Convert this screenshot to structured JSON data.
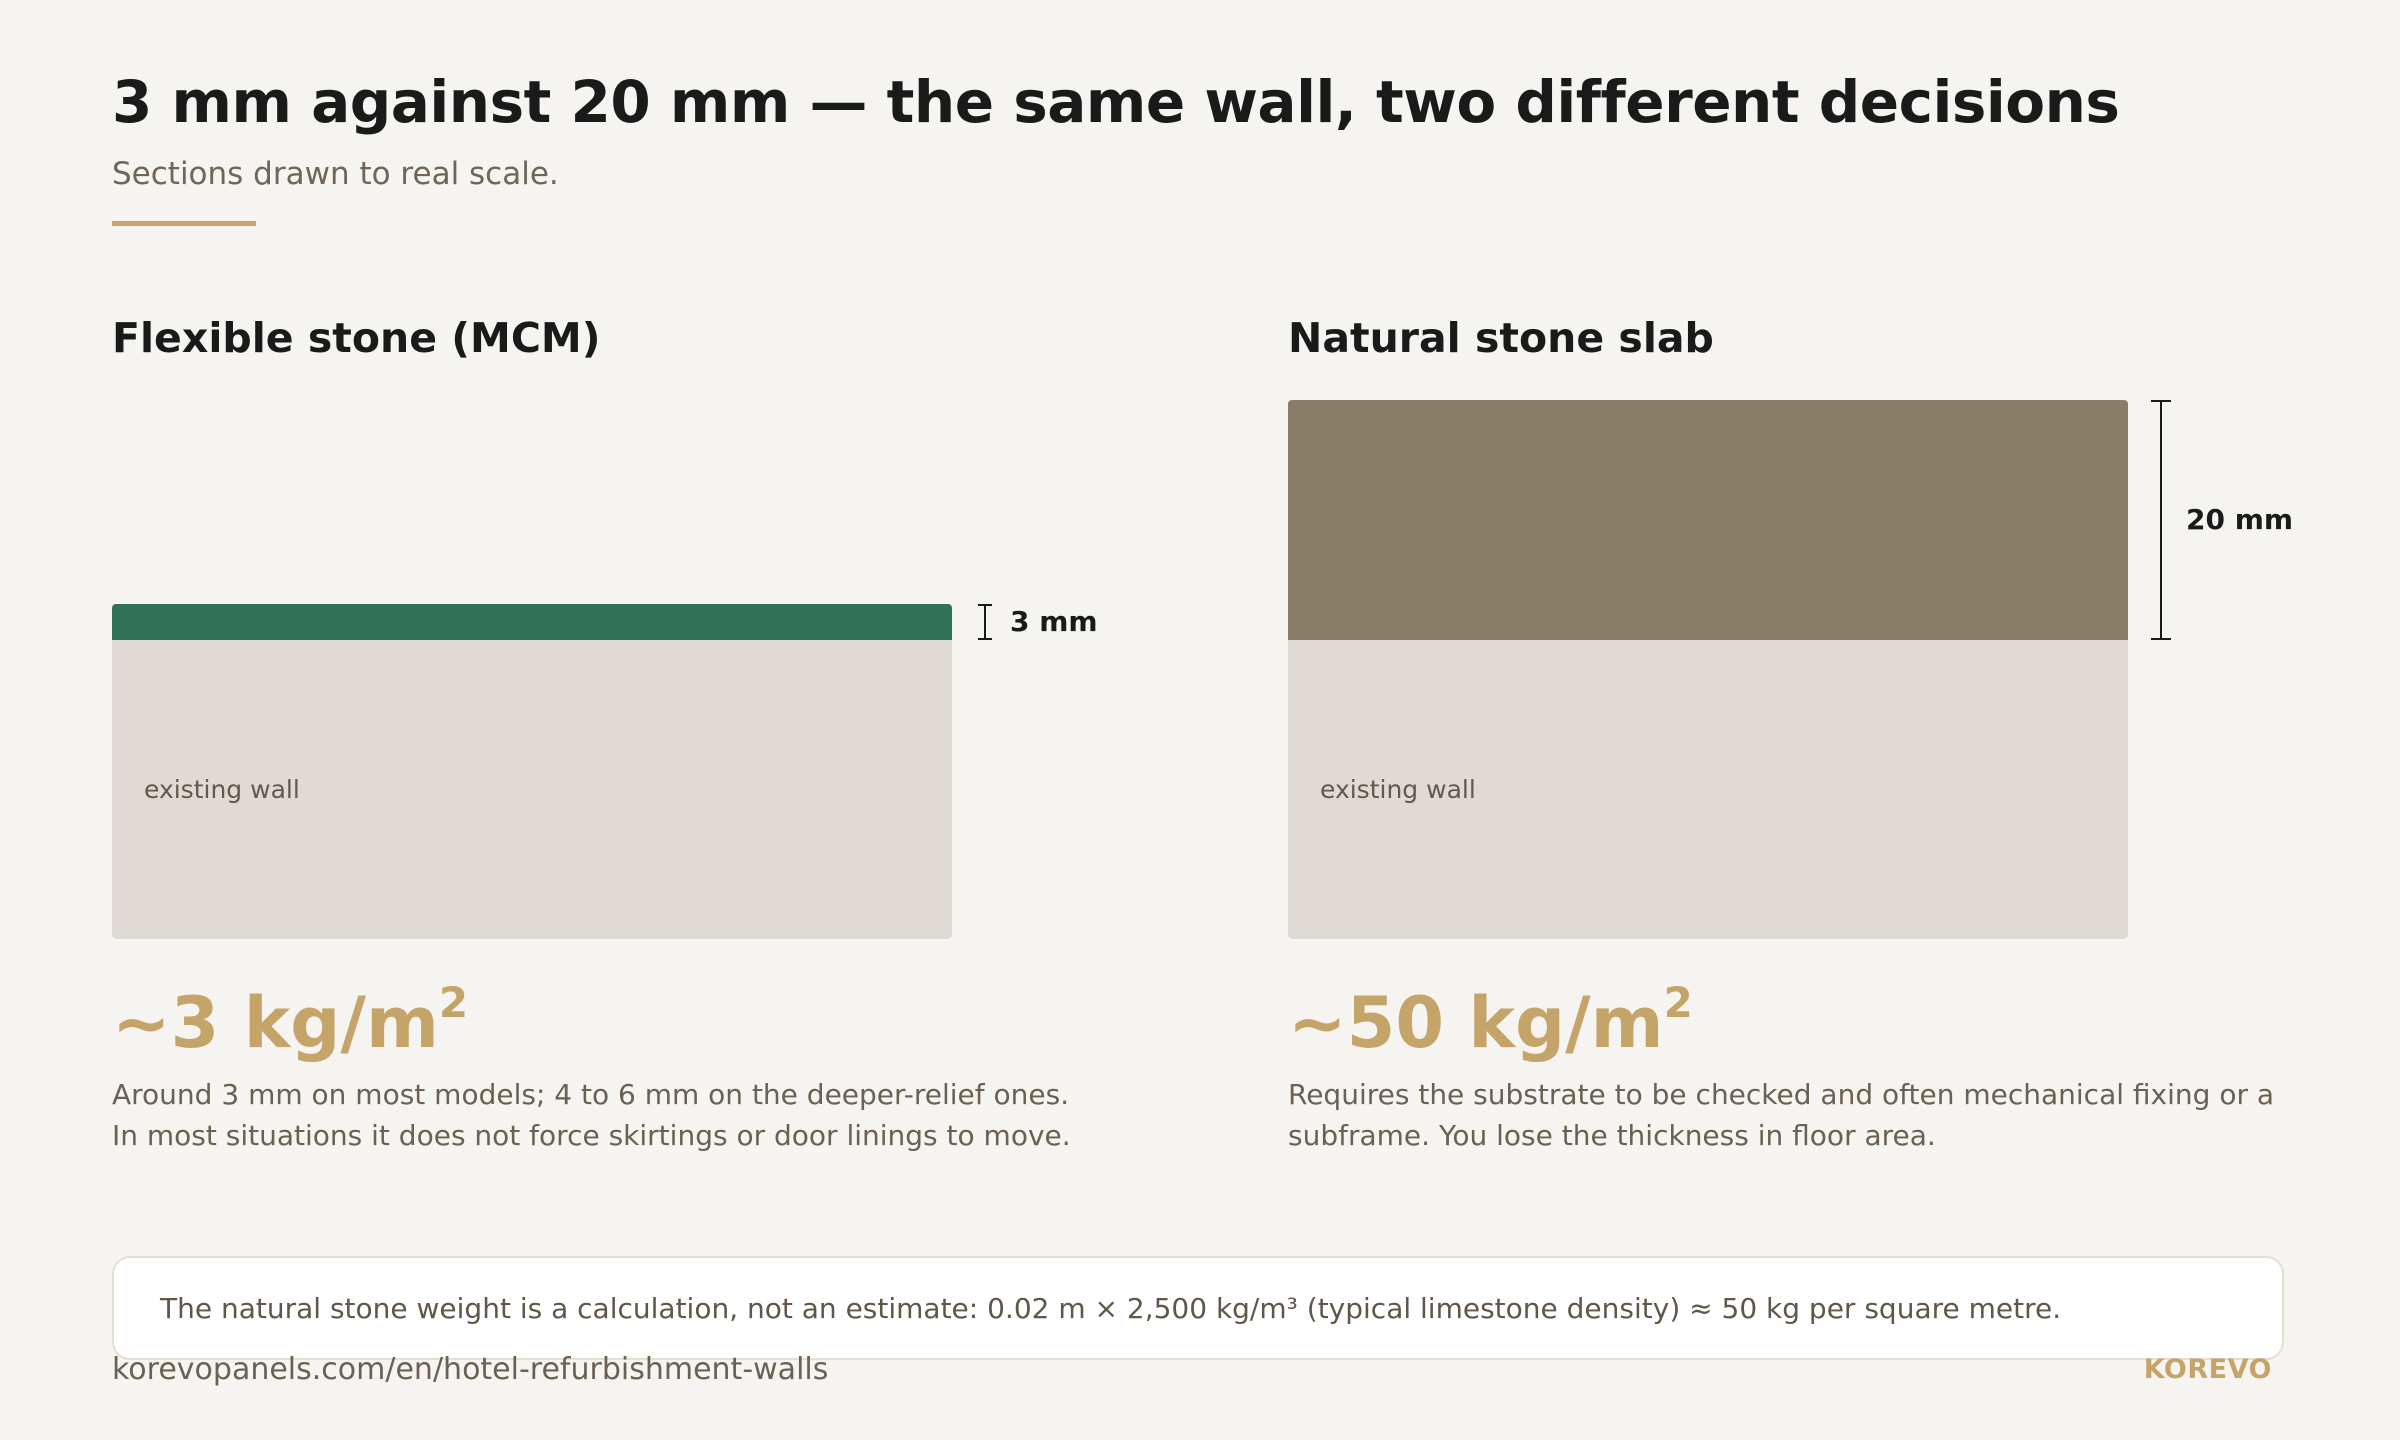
{
  "header": {
    "title": "3 mm against 20 mm — the same wall, two different decisions",
    "subtitle": "Sections drawn to real scale."
  },
  "left": {
    "heading": "Flexible stone (MCM)",
    "layer_thickness_mm": 3,
    "layer_color": "#317258",
    "dimension_label": "3 mm",
    "wall_label": "existing wall",
    "weight_value": "~3 kg/m",
    "weight_sup": "2",
    "description_line1": "Around 3 mm on most models; 4 to 6 mm on the deeper-relief ones.",
    "description_line2": "In most situations it does not force skirtings or door linings to move."
  },
  "right": {
    "heading": "Natural stone slab",
    "layer_thickness_mm": 20,
    "layer_color": "#8a7d67",
    "dimension_label": "20 mm",
    "wall_label": "existing wall",
    "weight_value": "~50 kg/m",
    "weight_sup": "2",
    "description": "Requires the substrate to be checked and often mechanical fixing or a subframe. You lose the thickness in floor area."
  },
  "note": {
    "text": "The natural stone weight is a calculation, not an estimate: 0.02 m × 2,500 kg/m³ (typical limestone density) ≈ 50 kg per square metre."
  },
  "footer": {
    "url": "korevopanels.com/en/hotel-refurbishment-walls",
    "brand": "KOREVO"
  },
  "colors": {
    "accent": "#c5a46a",
    "wall": "#dfdad3",
    "background": "#f6f4f0"
  }
}
